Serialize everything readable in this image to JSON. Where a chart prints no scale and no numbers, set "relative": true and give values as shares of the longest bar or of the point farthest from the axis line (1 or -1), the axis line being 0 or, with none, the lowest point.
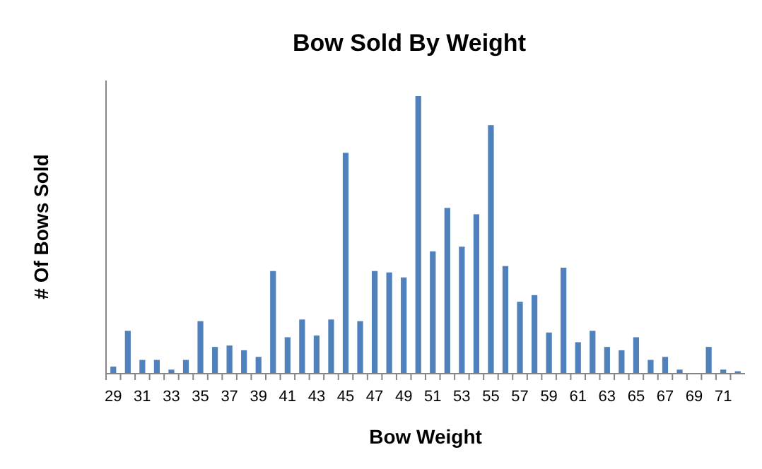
{
  "chart_data": {
    "type": "bar",
    "title": "Bow Sold By Weight",
    "xlabel": "Bow Weight",
    "ylabel": "# Of Bows Sold",
    "relative": true,
    "color": "#4f81bd",
    "categories": [
      "29",
      null,
      "31",
      null,
      "33",
      null,
      "35",
      null,
      "37",
      null,
      "39",
      null,
      "41",
      null,
      "43",
      null,
      "45",
      null,
      "47",
      null,
      "49",
      null,
      "51",
      null,
      "53",
      null,
      "55",
      null,
      "57",
      null,
      "59",
      null,
      "61",
      null,
      "63",
      null,
      "65",
      null,
      "67",
      null,
      "69",
      null,
      "71",
      null
    ],
    "values": [
      0.023,
      0.152,
      0.047,
      0.047,
      0.012,
      0.047,
      0.187,
      0.094,
      0.099,
      0.082,
      0.058,
      0.368,
      0.129,
      0.193,
      0.135,
      0.193,
      0.795,
      0.187,
      0.368,
      0.363,
      0.345,
      1,
      0.439,
      0.596,
      0.456,
      0.573,
      0.895,
      0.386,
      0.257,
      0.281,
      0.146,
      0.38,
      0.111,
      0.152,
      0.094,
      0.082,
      0.129,
      0.047,
      0.058,
      0.012,
      0,
      0.094,
      0.012,
      0.006
    ]
  }
}
